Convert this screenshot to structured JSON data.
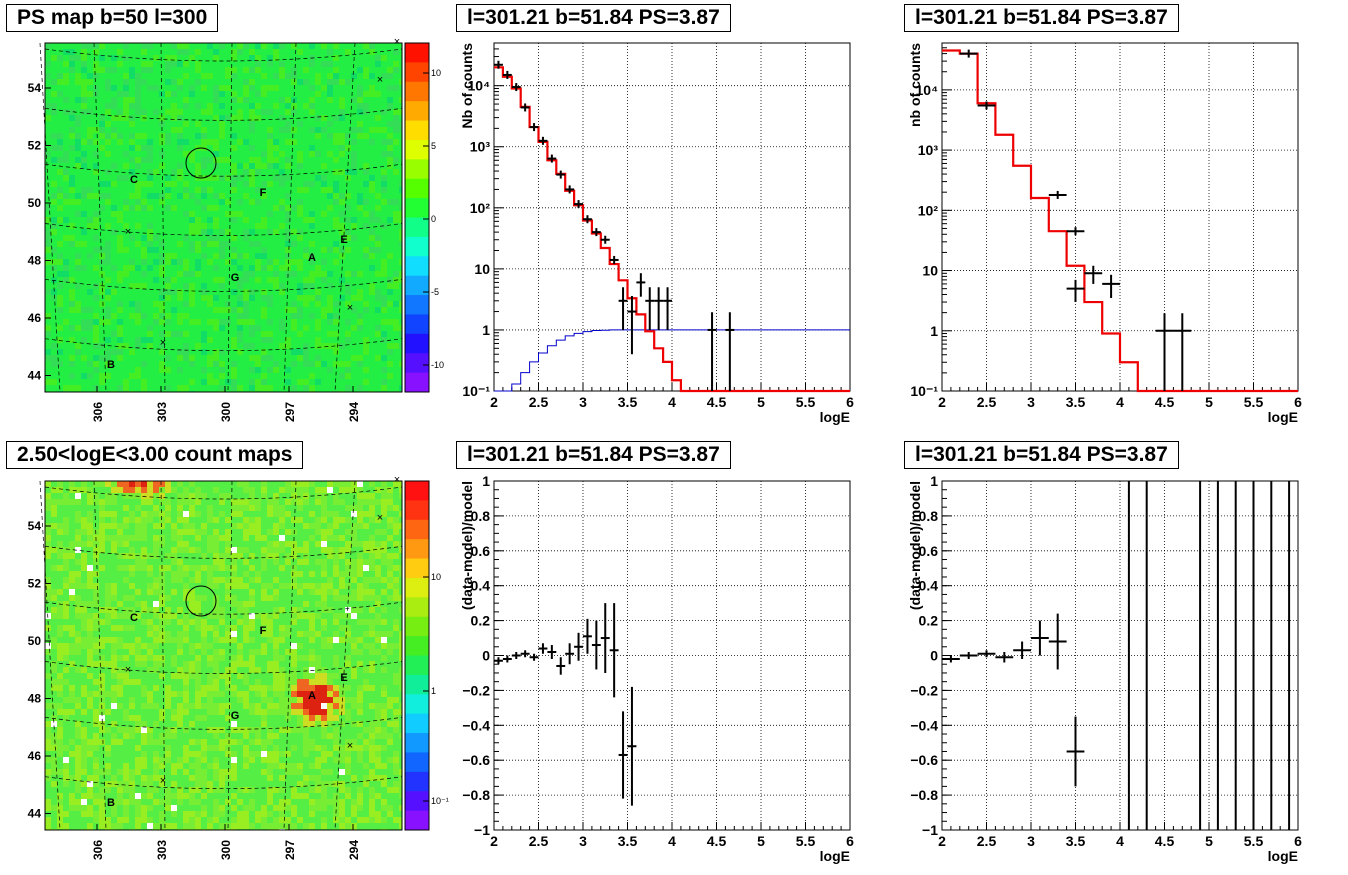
{
  "titles": {
    "map_top": "PS map b=50 l=300",
    "map_bottom": "2.50<logE<3.00 count maps",
    "spec_mid": "l=301.21 b=51.84 PS=3.87",
    "spec_right": "l=301.21 b=51.84 PS=3.87",
    "res_mid": "l=301.21 b=51.84 PS=3.87",
    "res_right": "l=301.21 b=51.84 PS=3.87"
  },
  "chart_data": [
    {
      "type": "heatmap",
      "id": "ps-map",
      "title": "PS map b=50 l=300",
      "x_ticks": [
        "306",
        "303",
        "300",
        "297",
        "294"
      ],
      "y_ticks": [
        "54",
        "52",
        "50",
        "48",
        "46",
        "44"
      ],
      "colorbar_ticks": [
        "10",
        "5",
        "0",
        "-5",
        "-10"
      ],
      "colorbar_range": [
        -13,
        13
      ],
      "source_labels": [
        "A",
        "B",
        "C",
        "E",
        "F",
        "G"
      ],
      "colors": {
        "base": "#22ee44",
        "text": "#000000"
      }
    },
    {
      "type": "heatmap",
      "id": "count-map",
      "title": "2.50<logE<3.00 count maps",
      "x_ticks": [
        "306",
        "303",
        "300",
        "297",
        "294"
      ],
      "y_ticks": [
        "54",
        "52",
        "50",
        "48",
        "46",
        "44"
      ],
      "colorbar_ticks": [
        "10",
        "1",
        "10⁻¹"
      ],
      "colorbar_scale": "log",
      "source_labels": [
        "A",
        "B",
        "C",
        "E",
        "F",
        "G"
      ],
      "colors": {
        "base": "#66ee33",
        "hot": "#dd2211"
      }
    },
    {
      "type": "line",
      "id": "spectrum-mid",
      "title": "l=301.21 b=51.84 PS=3.87",
      "xlabel": "logE",
      "ylabel": "Nb of counts",
      "xlim": [
        2,
        6
      ],
      "ylim": [
        0.1,
        50000
      ],
      "y_scale": "log",
      "x_ticks": [
        "2",
        "2.5",
        "3",
        "3.5",
        "4",
        "4.5",
        "5",
        "5.5",
        "6"
      ],
      "y_ticks": [
        "10⁻¹",
        "1",
        "10",
        "10²",
        "10³",
        "10⁴"
      ],
      "grid": true,
      "model": {
        "edges": [
          2.0,
          2.1,
          2.2,
          2.3,
          2.4,
          2.5,
          2.6,
          2.7,
          2.8,
          2.9,
          3.0,
          3.1,
          3.2,
          3.3,
          3.4,
          3.5,
          3.6,
          3.7,
          3.8,
          3.9,
          4.0,
          4.1,
          4.2,
          4.3,
          4.4,
          4.5,
          4.6,
          4.7,
          4.8,
          4.9,
          5.0,
          5.1,
          5.2,
          5.3,
          5.4,
          5.5,
          5.6,
          5.7,
          5.8,
          5.9,
          6.0
        ],
        "values": [
          20000,
          14000,
          9000,
          4500,
          2100,
          1200,
          600,
          360,
          190,
          110,
          62,
          38,
          22,
          12,
          6.5,
          3.3,
          1.8,
          0.95,
          0.5,
          0.3,
          0.15,
          0.1,
          0.1,
          0.1,
          0.1,
          0.1,
          0.1,
          0.1,
          0.1,
          0.1,
          0.1,
          0.1,
          0.1,
          0.1,
          0.1,
          0.1,
          0.1,
          0.1,
          0.1,
          0.1
        ],
        "color": "#ee0000"
      },
      "acceptance": {
        "edges": [
          2.0,
          2.1,
          2.2,
          2.3,
          2.4,
          2.5,
          2.6,
          2.7,
          2.8,
          2.9,
          3.0,
          3.1,
          3.2,
          3.3,
          3.4,
          3.5,
          3.6,
          3.7,
          3.8,
          3.9,
          4.0,
          4.1,
          4.2,
          4.3,
          4.4,
          4.5,
          4.6,
          4.7,
          4.8,
          4.9,
          5.0,
          5.1,
          5.2,
          5.3,
          5.4,
          5.5,
          5.6,
          5.7,
          5.8,
          5.9,
          6.0
        ],
        "values": [
          0.05,
          0.08,
          0.13,
          0.2,
          0.3,
          0.42,
          0.55,
          0.68,
          0.8,
          0.88,
          0.94,
          0.98,
          0.99,
          1,
          1,
          1,
          1,
          1,
          1,
          1,
          1,
          1,
          1,
          1,
          1,
          1,
          1,
          1,
          1,
          1,
          1,
          1,
          1,
          1,
          1,
          1,
          1,
          1,
          1,
          1
        ],
        "color": "#0000cc"
      },
      "points": [
        {
          "x": 2.05,
          "y": 22000,
          "xerr": 0.05,
          "yerr": 0
        },
        {
          "x": 2.15,
          "y": 15000,
          "xerr": 0.05,
          "yerr": 0
        },
        {
          "x": 2.25,
          "y": 9500,
          "xerr": 0.05,
          "yerr": 0
        },
        {
          "x": 2.35,
          "y": 4400,
          "xerr": 0.05,
          "yerr": 0
        },
        {
          "x": 2.45,
          "y": 2100,
          "xerr": 0.05,
          "yerr": 0
        },
        {
          "x": 2.55,
          "y": 1250,
          "xerr": 0.05,
          "yerr": 0
        },
        {
          "x": 2.65,
          "y": 640,
          "xerr": 0.05,
          "yerr": 0
        },
        {
          "x": 2.75,
          "y": 350,
          "xerr": 0.05,
          "yerr": 0
        },
        {
          "x": 2.85,
          "y": 200,
          "xerr": 0.05,
          "yerr": 0
        },
        {
          "x": 2.95,
          "y": 115,
          "xerr": 0.05,
          "yerr": 0
        },
        {
          "x": 3.05,
          "y": 65,
          "xerr": 0.05,
          "yerr": 0
        },
        {
          "x": 3.15,
          "y": 40,
          "xerr": 0.05,
          "yerr": 0
        },
        {
          "x": 3.25,
          "y": 30,
          "xerr": 0.05,
          "yerr": 0
        },
        {
          "x": 3.35,
          "y": 14,
          "xerr": 0.05,
          "yerr": 0
        },
        {
          "x": 3.45,
          "y": 3,
          "xerr": 0.05,
          "yerr": 2
        },
        {
          "x": 3.55,
          "y": 2,
          "xerr": 0.05,
          "yerr": 1.6
        },
        {
          "x": 3.65,
          "y": 6,
          "xerr": 0.05,
          "yerr": 2.5
        },
        {
          "x": 3.75,
          "y": 3,
          "xerr": 0.05,
          "yerr": 2
        },
        {
          "x": 3.85,
          "y": 3,
          "xerr": 0.05,
          "yerr": 2
        },
        {
          "x": 3.95,
          "y": 3,
          "xerr": 0.05,
          "yerr": 2
        },
        {
          "x": 4.45,
          "y": 1,
          "xerr": 0.05,
          "yerr": 0.95
        },
        {
          "x": 4.65,
          "y": 1,
          "xerr": 0.05,
          "yerr": 0.95
        }
      ]
    },
    {
      "type": "line",
      "id": "spectrum-right",
      "title": "l=301.21 b=51.84 PS=3.87",
      "xlabel": "logE",
      "ylabel": "nb of counts",
      "xlim": [
        2,
        6
      ],
      "ylim": [
        0.1,
        60000
      ],
      "y_scale": "log",
      "x_ticks": [
        "2",
        "2.5",
        "3",
        "3.5",
        "4",
        "4.5",
        "5",
        "5.5",
        "6"
      ],
      "y_ticks": [
        "10⁻¹",
        "1",
        "10",
        "10²",
        "10³",
        "10⁴"
      ],
      "grid": true,
      "model": {
        "edges": [
          2.0,
          2.2,
          2.4,
          2.6,
          2.8,
          3.0,
          3.2,
          3.4,
          3.6,
          3.8,
          4.0,
          4.2,
          4.4,
          4.6,
          4.8,
          5.0,
          5.2,
          5.4,
          5.6,
          5.8,
          6.0
        ],
        "values": [
          45000,
          40000,
          6000,
          1800,
          550,
          160,
          45,
          12,
          3,
          0.9,
          0.3,
          0.1,
          0.1,
          0.1,
          0.1,
          0.1,
          0.1,
          0.1,
          0.1,
          0.1
        ],
        "color": "#ee0000"
      },
      "points": [
        {
          "x": 2.3,
          "y": 40000,
          "xerr": 0.1,
          "yerr": 0
        },
        {
          "x": 2.5,
          "y": 5500,
          "xerr": 0.1,
          "yerr": 0
        },
        {
          "x": 3.3,
          "y": 180,
          "xerr": 0.1,
          "yerr": 0
        },
        {
          "x": 3.5,
          "y": 45,
          "xerr": 0.1,
          "yerr": 0
        },
        {
          "x": 3.5,
          "y": 5,
          "xerr": 0.1,
          "yerr": 2
        },
        {
          "x": 3.7,
          "y": 9,
          "xerr": 0.1,
          "yerr": 3
        },
        {
          "x": 3.9,
          "y": 6,
          "xerr": 0.1,
          "yerr": 2.5
        },
        {
          "x": 4.5,
          "y": 1,
          "xerr": 0.1,
          "yerr": 0.95
        },
        {
          "x": 4.7,
          "y": 1,
          "xerr": 0.1,
          "yerr": 0.95
        }
      ]
    },
    {
      "type": "scatter",
      "id": "residual-mid",
      "title": "l=301.21 b=51.84 PS=3.87",
      "xlabel": "logE",
      "ylabel": "(data-model)/model",
      "xlim": [
        2,
        6
      ],
      "ylim": [
        -1,
        1
      ],
      "x_ticks": [
        "2",
        "2.5",
        "3",
        "3.5",
        "4",
        "4.5",
        "5",
        "5.5",
        "6"
      ],
      "y_ticks": [
        "−1",
        "−0.8",
        "−0.6",
        "−0.4",
        "−0.2",
        "0",
        "0.2",
        "0.4",
        "0.6",
        "0.8",
        "1"
      ],
      "grid": true,
      "points": [
        {
          "x": 2.05,
          "y": -0.03,
          "xerr": 0.05,
          "yerr": 0.02
        },
        {
          "x": 2.15,
          "y": -0.02,
          "xerr": 0.05,
          "yerr": 0.02
        },
        {
          "x": 2.25,
          "y": 0.0,
          "xerr": 0.05,
          "yerr": 0.02
        },
        {
          "x": 2.35,
          "y": 0.01,
          "xerr": 0.05,
          "yerr": 0.02
        },
        {
          "x": 2.45,
          "y": -0.01,
          "xerr": 0.05,
          "yerr": 0.02
        },
        {
          "x": 2.55,
          "y": 0.04,
          "xerr": 0.05,
          "yerr": 0.03
        },
        {
          "x": 2.65,
          "y": 0.02,
          "xerr": 0.05,
          "yerr": 0.04
        },
        {
          "x": 2.75,
          "y": -0.06,
          "xerr": 0.05,
          "yerr": 0.05
        },
        {
          "x": 2.85,
          "y": 0.01,
          "xerr": 0.05,
          "yerr": 0.06
        },
        {
          "x": 2.95,
          "y": 0.05,
          "xerr": 0.05,
          "yerr": 0.08
        },
        {
          "x": 3.05,
          "y": 0.11,
          "xerr": 0.05,
          "yerr": 0.1
        },
        {
          "x": 3.15,
          "y": 0.06,
          "xerr": 0.05,
          "yerr": 0.14
        },
        {
          "x": 3.25,
          "y": 0.1,
          "xerr": 0.05,
          "yerr": 0.2
        },
        {
          "x": 3.35,
          "y": 0.03,
          "xerr": 0.05,
          "yerr": 0.27
        },
        {
          "x": 3.45,
          "y": -0.57,
          "xerr": 0.05,
          "yerr": 0.25
        },
        {
          "x": 3.55,
          "y": -0.52,
          "xerr": 0.05,
          "yerr": 0.34
        }
      ]
    },
    {
      "type": "scatter",
      "id": "residual-right",
      "title": "l=301.21 b=51.84 PS=3.87",
      "xlabel": "logE",
      "ylabel": "(data-model)/model",
      "xlim": [
        2,
        6
      ],
      "ylim": [
        -1,
        1
      ],
      "x_ticks": [
        "2",
        "2.5",
        "3",
        "3.5",
        "4",
        "4.5",
        "5",
        "5.5",
        "6"
      ],
      "y_ticks": [
        "−1",
        "−0.8",
        "−0.6",
        "−0.4",
        "−0.2",
        "0",
        "0.2",
        "0.4",
        "0.6",
        "0.8",
        "1"
      ],
      "grid": true,
      "points": [
        {
          "x": 2.1,
          "y": -0.02,
          "xerr": 0.1,
          "yerr": 0.02
        },
        {
          "x": 2.3,
          "y": 0.0,
          "xerr": 0.1,
          "yerr": 0.02
        },
        {
          "x": 2.5,
          "y": 0.01,
          "xerr": 0.1,
          "yerr": 0.02
        },
        {
          "x": 2.7,
          "y": -0.01,
          "xerr": 0.1,
          "yerr": 0.03
        },
        {
          "x": 2.9,
          "y": 0.03,
          "xerr": 0.1,
          "yerr": 0.05
        },
        {
          "x": 3.1,
          "y": 0.1,
          "xerr": 0.1,
          "yerr": 0.1
        },
        {
          "x": 3.3,
          "y": 0.08,
          "xerr": 0.1,
          "yerr": 0.16
        },
        {
          "x": 3.5,
          "y": -0.55,
          "xerr": 0.1,
          "yerr": 0.2
        },
        {
          "x": 4.1,
          "y": 0,
          "xerr": 0,
          "yerr": 1
        },
        {
          "x": 4.3,
          "y": 0,
          "xerr": 0,
          "yerr": 1
        },
        {
          "x": 4.9,
          "y": 0,
          "xerr": 0,
          "yerr": 1
        },
        {
          "x": 5.1,
          "y": 0,
          "xerr": 0,
          "yerr": 1
        },
        {
          "x": 5.3,
          "y": 0,
          "xerr": 0,
          "yerr": 1
        },
        {
          "x": 5.5,
          "y": 0,
          "xerr": 0,
          "yerr": 1
        },
        {
          "x": 5.7,
          "y": 0,
          "xerr": 0,
          "yerr": 1
        },
        {
          "x": 5.9,
          "y": 0,
          "xerr": 0,
          "yerr": 1
        }
      ]
    }
  ]
}
